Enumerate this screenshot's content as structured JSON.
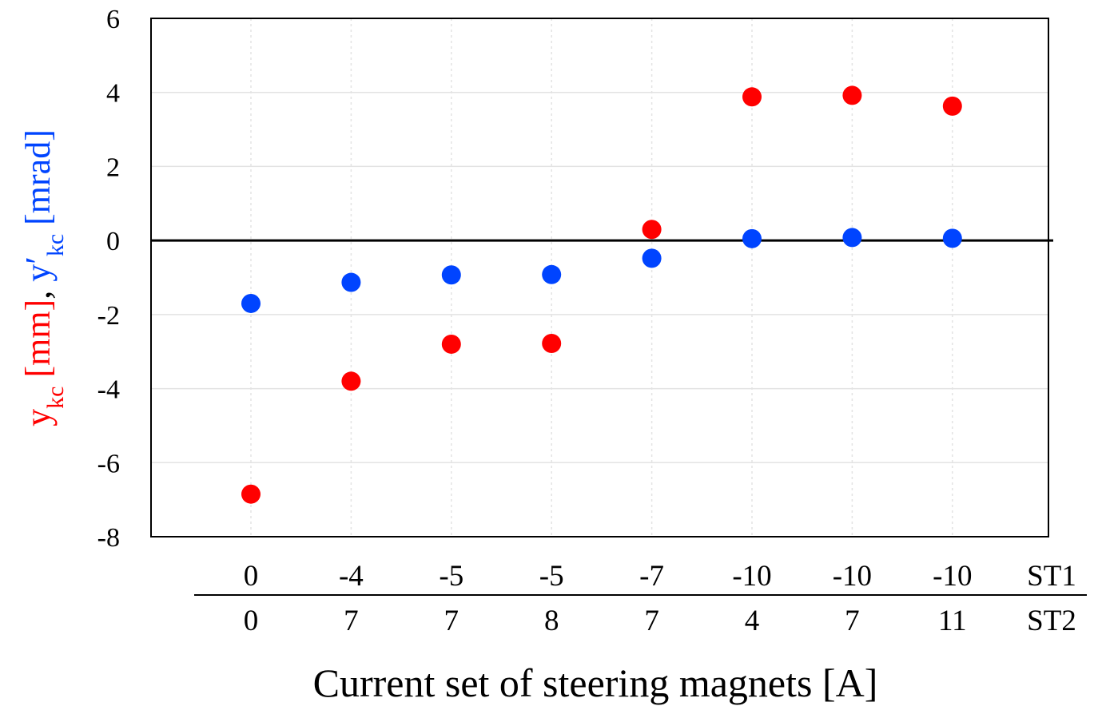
{
  "chart_data": {
    "type": "scatter",
    "title": "",
    "xlabel": "Current set of steering magnets [A]",
    "ylabel": {
      "y_symbol": "y",
      "y_sub": "kc",
      "y_unit": " [mm]",
      "separator": ", ",
      "yp_symbol": "y′",
      "yp_sub": "kc",
      "yp_unit": " [mrad]"
    },
    "ylim": [
      -8,
      6
    ],
    "yticks": [
      "-8",
      "-6",
      "-4",
      "-2",
      "0",
      "2",
      "4",
      "6"
    ],
    "grid": true,
    "legend": "none",
    "categories": [
      {
        "st1": "0",
        "st2": "0"
      },
      {
        "st1": "-4",
        "st2": "7"
      },
      {
        "st1": "-5",
        "st2": "7"
      },
      {
        "st1": "-5",
        "st2": "8"
      },
      {
        "st1": "-7",
        "st2": "7"
      },
      {
        "st1": "-10",
        "st2": "4"
      },
      {
        "st1": "-10",
        "st2": "7"
      },
      {
        "st1": "-10",
        "st2": "11"
      }
    ],
    "row_labels": {
      "st1": "ST1",
      "st2": "ST2"
    },
    "series": [
      {
        "quantity": "y_kc",
        "color": "#ff0000",
        "values": [
          -6.85,
          -3.8,
          -2.8,
          -2.78,
          0.3,
          3.88,
          3.92,
          3.63
        ]
      },
      {
        "quantity": "y'_kc",
        "color": "#0044ff",
        "values": [
          -1.7,
          -1.13,
          -0.93,
          -0.92,
          -0.48,
          0.05,
          0.08,
          0.06
        ]
      }
    ]
  }
}
